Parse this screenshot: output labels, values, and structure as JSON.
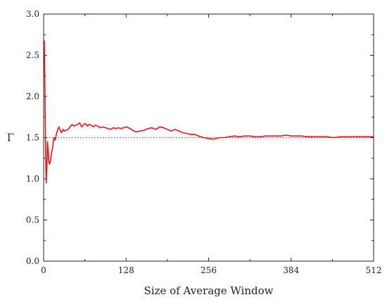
{
  "chart_data": {
    "type": "line",
    "xlabel": "Size of Average Window",
    "ylabel": "Γ",
    "xlim": [
      0,
      512
    ],
    "ylim": [
      0.0,
      3.0
    ],
    "xticks": [
      0,
      128,
      256,
      384,
      512
    ],
    "xtick_labels": [
      "0",
      "128",
      "256",
      "384",
      "512"
    ],
    "yticks": [
      0.0,
      0.5,
      1.0,
      1.5,
      2.0,
      2.5,
      3.0
    ],
    "ytick_labels": [
      "0.0",
      "0.5",
      "1.0",
      "1.5",
      "2.0",
      "2.5",
      "3.0"
    ],
    "grid": false,
    "legend": "none",
    "reference_line": {
      "y": 1.5,
      "style": "dotted",
      "color": "#555555"
    },
    "series": [
      {
        "color": "#ee1111",
        "x": [
          1,
          2,
          3,
          4,
          5,
          6,
          7,
          8,
          9,
          10,
          12,
          14,
          16,
          18,
          20,
          22,
          24,
          26,
          28,
          30,
          32,
          35,
          38,
          41,
          44,
          47,
          50,
          53,
          56,
          59,
          62,
          65,
          68,
          71,
          74,
          77,
          80,
          84,
          88,
          92,
          96,
          100,
          104,
          108,
          112,
          116,
          120,
          124,
          128,
          132,
          136,
          140,
          144,
          150,
          156,
          162,
          168,
          174,
          180,
          186,
          192,
          198,
          204,
          210,
          216,
          222,
          228,
          234,
          240,
          248,
          256,
          264,
          272,
          280,
          288,
          296,
          304,
          312,
          320,
          328,
          336,
          344,
          352,
          360,
          368,
          376,
          384,
          392,
          400,
          410,
          420,
          430,
          440,
          450,
          460,
          470,
          480,
          490,
          500,
          512
        ],
        "values": [
          2.68,
          2.1,
          1.35,
          0.95,
          1.15,
          1.45,
          1.35,
          1.22,
          1.18,
          1.19,
          1.3,
          1.38,
          1.5,
          1.47,
          1.55,
          1.6,
          1.63,
          1.58,
          1.56,
          1.6,
          1.58,
          1.59,
          1.6,
          1.63,
          1.66,
          1.64,
          1.65,
          1.66,
          1.68,
          1.63,
          1.66,
          1.67,
          1.64,
          1.66,
          1.65,
          1.63,
          1.65,
          1.64,
          1.62,
          1.63,
          1.62,
          1.61,
          1.6,
          1.62,
          1.61,
          1.62,
          1.61,
          1.62,
          1.63,
          1.62,
          1.6,
          1.58,
          1.57,
          1.58,
          1.59,
          1.61,
          1.62,
          1.6,
          1.63,
          1.62,
          1.6,
          1.58,
          1.6,
          1.58,
          1.56,
          1.55,
          1.54,
          1.54,
          1.52,
          1.5,
          1.49,
          1.48,
          1.5,
          1.5,
          1.51,
          1.52,
          1.51,
          1.52,
          1.52,
          1.51,
          1.51,
          1.52,
          1.52,
          1.52,
          1.52,
          1.53,
          1.52,
          1.52,
          1.52,
          1.51,
          1.51,
          1.51,
          1.51,
          1.5,
          1.51,
          1.51,
          1.51,
          1.51,
          1.51,
          1.51
        ]
      }
    ]
  }
}
